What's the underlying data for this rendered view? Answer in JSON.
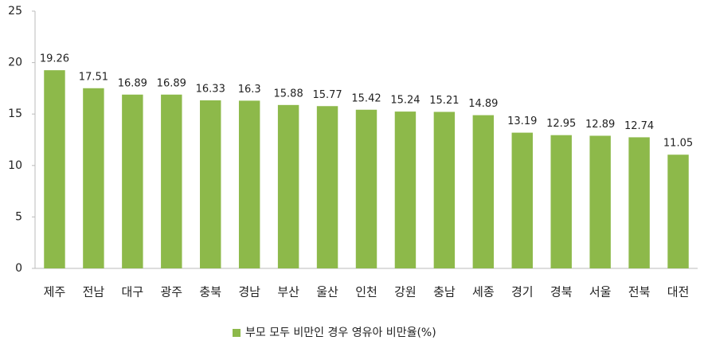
{
  "chart_data": {
    "type": "bar",
    "categories": [
      "제주",
      "전남",
      "대구",
      "광주",
      "충북",
      "경남",
      "부산",
      "울산",
      "인천",
      "강원",
      "충남",
      "세종",
      "경기",
      "경북",
      "서울",
      "전북",
      "대전"
    ],
    "series": [
      {
        "name": "부모 모두 비만인 경우 영유아 비만율(%)",
        "color": "#8db94a",
        "values": [
          19.26,
          17.51,
          16.89,
          16.89,
          16.33,
          16.3,
          15.88,
          15.77,
          15.42,
          15.24,
          15.21,
          14.89,
          13.19,
          12.95,
          12.89,
          12.74,
          11.05
        ]
      }
    ],
    "ylim": [
      0,
      25
    ],
    "yticks": [
      0,
      5,
      10,
      15,
      20,
      25
    ],
    "grid": false,
    "legend": "bottom",
    "data_labels": true
  }
}
